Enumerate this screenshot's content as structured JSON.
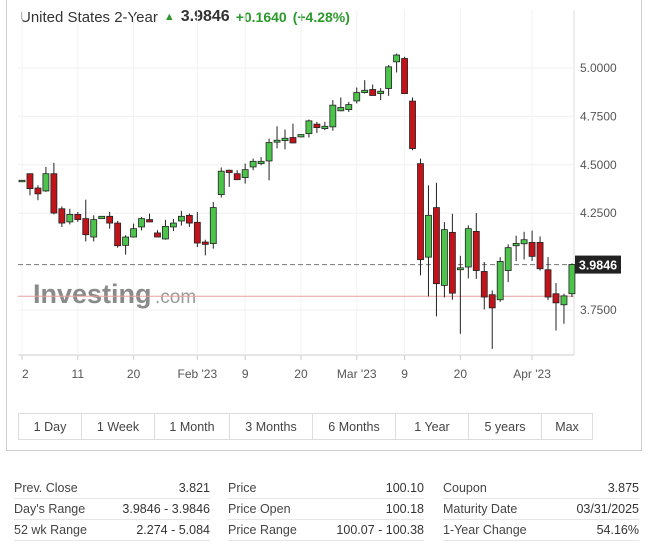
{
  "header": {
    "name": "United States 2-Year",
    "direction_icon": "arrow-up-icon",
    "last": "3.9846",
    "change": "+0.1640",
    "change_pct": "(+4.28%)"
  },
  "colors": {
    "up": "#4cc44c",
    "down": "#c0141a",
    "positive_text": "#2b9a2b",
    "prev_close_line": "#e8a0a0"
  },
  "chart_data": {
    "type": "candlestick",
    "ylim": [
      3.5,
      5.15
    ],
    "y_ticks": [
      "5.0000",
      "4.7500",
      "4.5000",
      "4.2500",
      "3.7500"
    ],
    "current_price_label": "3.9846",
    "current_price": 3.9846,
    "prev_close": 3.821,
    "watermark": "Investing.com",
    "x_ticks": [
      {
        "label": "2",
        "candle": 0
      },
      {
        "label": "11",
        "candle": 7
      },
      {
        "label": "20",
        "candle": 14
      },
      {
        "label": "Feb '23",
        "candle": 22
      },
      {
        "label": "9",
        "candle": 28
      },
      {
        "label": "20",
        "candle": 35
      },
      {
        "label": "Mar '23",
        "candle": 42
      },
      {
        "label": "9",
        "candle": 48
      },
      {
        "label": "20",
        "candle": 55
      },
      {
        "label": "Apr '23",
        "candle": 64
      }
    ],
    "ohlc": [
      [
        4.42,
        4.42,
        4.42,
        4.42
      ],
      [
        4.454,
        4.454,
        4.342,
        4.377
      ],
      [
        4.38,
        4.394,
        4.317,
        4.35
      ],
      [
        4.365,
        4.489,
        4.36,
        4.454
      ],
      [
        4.454,
        4.51,
        4.244,
        4.251
      ],
      [
        4.273,
        4.285,
        4.179,
        4.199
      ],
      [
        4.205,
        4.273,
        4.192,
        4.244
      ],
      [
        4.244,
        4.256,
        4.205,
        4.217
      ],
      [
        4.222,
        4.32,
        4.104,
        4.139
      ],
      [
        4.127,
        4.239,
        4.104,
        4.217
      ],
      [
        4.222,
        4.234,
        4.222,
        4.234
      ],
      [
        4.234,
        4.256,
        4.17,
        4.199
      ],
      [
        4.199,
        4.21,
        4.072,
        4.082
      ],
      [
        4.084,
        4.136,
        4.036,
        4.127
      ],
      [
        4.127,
        4.196,
        4.124,
        4.17
      ],
      [
        4.179,
        4.23,
        4.161,
        4.222
      ],
      [
        4.217,
        4.248,
        4.203,
        4.205
      ],
      [
        4.148,
        4.162,
        4.131,
        4.127
      ],
      [
        4.117,
        4.216,
        4.113,
        4.182
      ],
      [
        4.179,
        4.22,
        4.158,
        4.199
      ],
      [
        4.21,
        4.262,
        4.186,
        4.234
      ],
      [
        4.239,
        4.248,
        4.179,
        4.199
      ],
      [
        4.203,
        4.256,
        4.075,
        4.096
      ],
      [
        4.101,
        4.113,
        4.032,
        4.089
      ],
      [
        4.093,
        4.308,
        4.067,
        4.279
      ],
      [
        4.346,
        4.486,
        4.331,
        4.467
      ],
      [
        4.472,
        4.475,
        4.386,
        4.46
      ],
      [
        4.454,
        4.472,
        4.422,
        4.423
      ],
      [
        4.434,
        4.506,
        4.403,
        4.475
      ],
      [
        4.489,
        4.532,
        4.472,
        4.518
      ],
      [
        4.506,
        4.54,
        4.498,
        4.518
      ],
      [
        4.52,
        4.635,
        4.42,
        4.615
      ],
      [
        4.617,
        4.699,
        4.585,
        4.627
      ],
      [
        4.625,
        4.682,
        4.58,
        4.637
      ],
      [
        4.641,
        4.713,
        4.61,
        4.613
      ],
      [
        4.644,
        4.656,
        4.642,
        4.656
      ],
      [
        4.661,
        4.734,
        4.641,
        4.727
      ],
      [
        4.71,
        4.722,
        4.665,
        4.692
      ],
      [
        4.687,
        4.722,
        4.679,
        4.699
      ],
      [
        4.696,
        4.834,
        4.676,
        4.808
      ],
      [
        4.779,
        4.848,
        4.776,
        4.796
      ],
      [
        4.785,
        4.825,
        4.773,
        4.811
      ],
      [
        4.83,
        4.899,
        4.817,
        4.873
      ],
      [
        4.873,
        4.937,
        4.868,
        4.885
      ],
      [
        4.889,
        4.915,
        4.858,
        4.858
      ],
      [
        4.868,
        4.896,
        4.835,
        4.88
      ],
      [
        4.894,
        5.015,
        4.856,
        5.006
      ],
      [
        5.032,
        5.075,
        4.977,
        5.067
      ],
      [
        5.049,
        5.058,
        4.865,
        4.868
      ],
      [
        4.829,
        4.848,
        4.575,
        4.584
      ],
      [
        4.506,
        4.532,
        3.929,
        4.01
      ],
      [
        4.023,
        4.394,
        3.82,
        4.239
      ],
      [
        4.279,
        4.407,
        3.717,
        3.886
      ],
      [
        3.877,
        4.204,
        3.815,
        4.165
      ],
      [
        4.151,
        4.247,
        3.803,
        3.837
      ],
      [
        3.958,
        4.03,
        3.627,
        3.968
      ],
      [
        3.972,
        4.187,
        3.913,
        4.17
      ],
      [
        4.156,
        4.251,
        3.911,
        3.954
      ],
      [
        3.949,
        3.998,
        3.753,
        3.817
      ],
      [
        3.829,
        3.851,
        3.549,
        3.761
      ],
      [
        3.803,
        4.023,
        3.792,
        4.001
      ],
      [
        3.954,
        4.089,
        3.894,
        4.072
      ],
      [
        4.082,
        4.134,
        4.003,
        4.094
      ],
      [
        4.092,
        4.154,
        4.011,
        4.113
      ],
      [
        4.099,
        4.16,
        4.003,
        4.027
      ],
      [
        4.099,
        4.13,
        3.954,
        3.963
      ],
      [
        3.958,
        4.023,
        3.801,
        3.817
      ],
      [
        3.834,
        3.889,
        3.644,
        3.787
      ],
      [
        3.777,
        3.834,
        3.679,
        3.823
      ],
      [
        3.834,
        3.991,
        3.817,
        3.985
      ]
    ]
  },
  "ranges": [
    "1 Day",
    "1 Week",
    "1 Month",
    "3 Months",
    "6 Months",
    "1 Year",
    "5 years",
    "Max"
  ],
  "stats": [
    [
      {
        "label": "Prev. Close",
        "value": "3.821"
      },
      {
        "label": "Day's Range",
        "value": "3.9846 - 3.9846"
      },
      {
        "label": "52 wk Range",
        "value": "2.274 - 5.084"
      }
    ],
    [
      {
        "label": "Price",
        "value": "100.10"
      },
      {
        "label": "Price Open",
        "value": "100.18"
      },
      {
        "label": "Price Range",
        "value": "100.07 - 100.38"
      }
    ],
    [
      {
        "label": "Coupon",
        "value": "3.875"
      },
      {
        "label": "Maturity Date",
        "value": "03/31/2025"
      },
      {
        "label": "1-Year Change",
        "value": "54.16%"
      }
    ]
  ]
}
